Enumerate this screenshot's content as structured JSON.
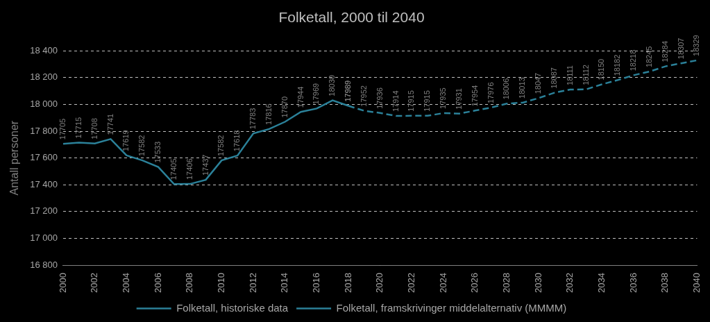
{
  "chart_data": {
    "type": "line",
    "title": "Folketall, 2000 til 2040",
    "y_label": "Antall personer",
    "x": [
      2000,
      2001,
      2002,
      2003,
      2004,
      2005,
      2006,
      2007,
      2008,
      2009,
      2010,
      2011,
      2012,
      2013,
      2014,
      2015,
      2016,
      2017,
      2018,
      2019,
      2020,
      2021,
      2022,
      2023,
      2024,
      2025,
      2026,
      2027,
      2028,
      2029,
      2030,
      2031,
      2032,
      2033,
      2034,
      2035,
      2036,
      2037,
      2038,
      2039,
      2040
    ],
    "series": [
      {
        "name": "Folketall, historiske data",
        "color": "#2B8199",
        "line_style": "solid",
        "marker": "none",
        "values": [
          17705,
          17715,
          17708,
          17741,
          17619,
          17582,
          17533,
          17405,
          17406,
          17437,
          17582,
          17618,
          17783,
          17816,
          17870,
          17944,
          17969,
          18030,
          17989,
          null,
          null,
          null,
          null,
          null,
          null,
          null,
          null,
          null,
          null,
          null,
          null,
          null,
          null,
          null,
          null,
          null,
          null,
          null,
          null,
          null,
          null
        ]
      },
      {
        "name": "Folketall, framskrivinger middelalternativ (MMMM)",
        "color": "#2B8199",
        "line_style": "dashed",
        "marker": "none",
        "values": [
          null,
          null,
          null,
          null,
          null,
          null,
          null,
          null,
          null,
          null,
          null,
          null,
          null,
          null,
          null,
          null,
          null,
          null,
          17989,
          17952,
          17936,
          17914,
          17915,
          17915,
          17935,
          17931,
          17954,
          17976,
          18006,
          18013,
          18047,
          18087,
          18111,
          18112,
          18150,
          18182,
          18218,
          18245,
          18284,
          18307,
          18329
        ]
      }
    ],
    "xlim": [
      2000,
      2040
    ],
    "xticks": [
      2000,
      2002,
      2004,
      2006,
      2008,
      2010,
      2012,
      2014,
      2016,
      2018,
      2020,
      2022,
      2024,
      2026,
      2028,
      2030,
      2032,
      2034,
      2036,
      2038,
      2040
    ],
    "ylim": [
      16800,
      18400
    ],
    "yticks": [
      {
        "value": 16800,
        "label": "16 800"
      },
      {
        "value": 17000,
        "label": "17 000"
      },
      {
        "value": 17200,
        "label": "17 200"
      },
      {
        "value": 17400,
        "label": "17 400"
      },
      {
        "value": 17600,
        "label": "17 600"
      },
      {
        "value": 17800,
        "label": "17 800"
      },
      {
        "value": 18000,
        "label": "18 000"
      },
      {
        "value": 18200,
        "label": "18 200"
      },
      {
        "value": 18400,
        "label": "18 400"
      }
    ],
    "grid": true,
    "legend": "bottom",
    "data_labels": true
  }
}
